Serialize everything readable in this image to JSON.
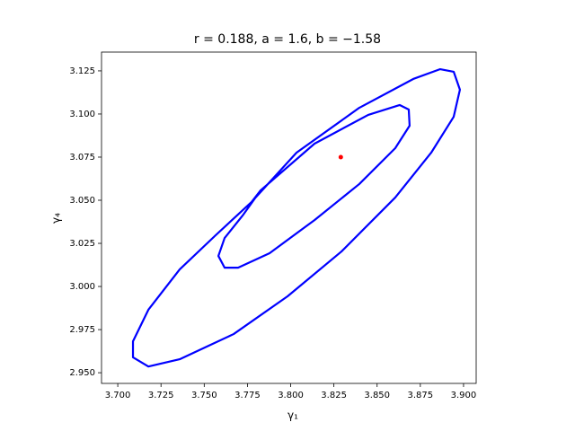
{
  "chart_data": {
    "type": "line",
    "title": "r = 0.188, a = 1.6, b = −1.58",
    "xlabel": "γ₁",
    "ylabel": "γ₄",
    "xlim": [
      3.6906,
      3.9073
    ],
    "ylim": [
      2.9438,
      3.1359
    ],
    "xticks": [
      {
        "value": 3.7,
        "label": "3.700"
      },
      {
        "value": 3.725,
        "label": "3.725"
      },
      {
        "value": 3.75,
        "label": "3.750"
      },
      {
        "value": 3.775,
        "label": "3.775"
      },
      {
        "value": 3.8,
        "label": "3.800"
      },
      {
        "value": 3.825,
        "label": "3.825"
      },
      {
        "value": 3.85,
        "label": "3.850"
      },
      {
        "value": 3.875,
        "label": "3.875"
      },
      {
        "value": 3.9,
        "label": "3.900"
      }
    ],
    "yticks": [
      {
        "value": 2.95,
        "label": "2.950"
      },
      {
        "value": 2.975,
        "label": "2.975"
      },
      {
        "value": 3.0,
        "label": "3.000"
      },
      {
        "value": 3.025,
        "label": "3.025"
      },
      {
        "value": 3.05,
        "label": "3.050"
      },
      {
        "value": 3.075,
        "label": "3.075"
      },
      {
        "value": 3.1,
        "label": "3.100"
      },
      {
        "value": 3.125,
        "label": "3.125"
      }
    ],
    "series": [
      {
        "color": "#0000ff",
        "x": [
          3.7774,
          3.8034,
          3.8397,
          3.8709,
          3.8865,
          3.8943,
          3.8979,
          3.8943,
          3.8813,
          3.8605,
          3.8294,
          3.7982,
          3.767,
          3.7358,
          3.7177,
          3.7088,
          3.7088,
          3.7177,
          3.7358,
          3.7566,
          3.7774,
          3.7826,
          3.8138,
          3.8449,
          3.8631,
          3.8683,
          3.8688,
          3.8605,
          3.8397,
          3.8138,
          3.7878,
          3.7696,
          3.7618,
          3.7582,
          3.7618,
          3.7722,
          3.7826,
          3.7774
        ],
        "y": [
          3.049,
          3.0776,
          3.1036,
          3.1203,
          3.126,
          3.1245,
          3.1141,
          3.0984,
          3.0776,
          3.0516,
          3.0203,
          2.9943,
          2.9724,
          2.9578,
          2.9536,
          2.9589,
          2.9682,
          2.9865,
          3.0099,
          3.0297,
          3.049,
          3.0557,
          3.0828,
          3.0995,
          3.1052,
          3.1026,
          3.0932,
          3.0802,
          3.0594,
          3.0385,
          3.0193,
          3.0109,
          3.0109,
          3.0177,
          3.0281,
          3.0411,
          3.0557,
          3.049
        ]
      }
    ],
    "point": {
      "x": 3.829,
      "y": 3.075,
      "color": "#ff0000"
    }
  }
}
